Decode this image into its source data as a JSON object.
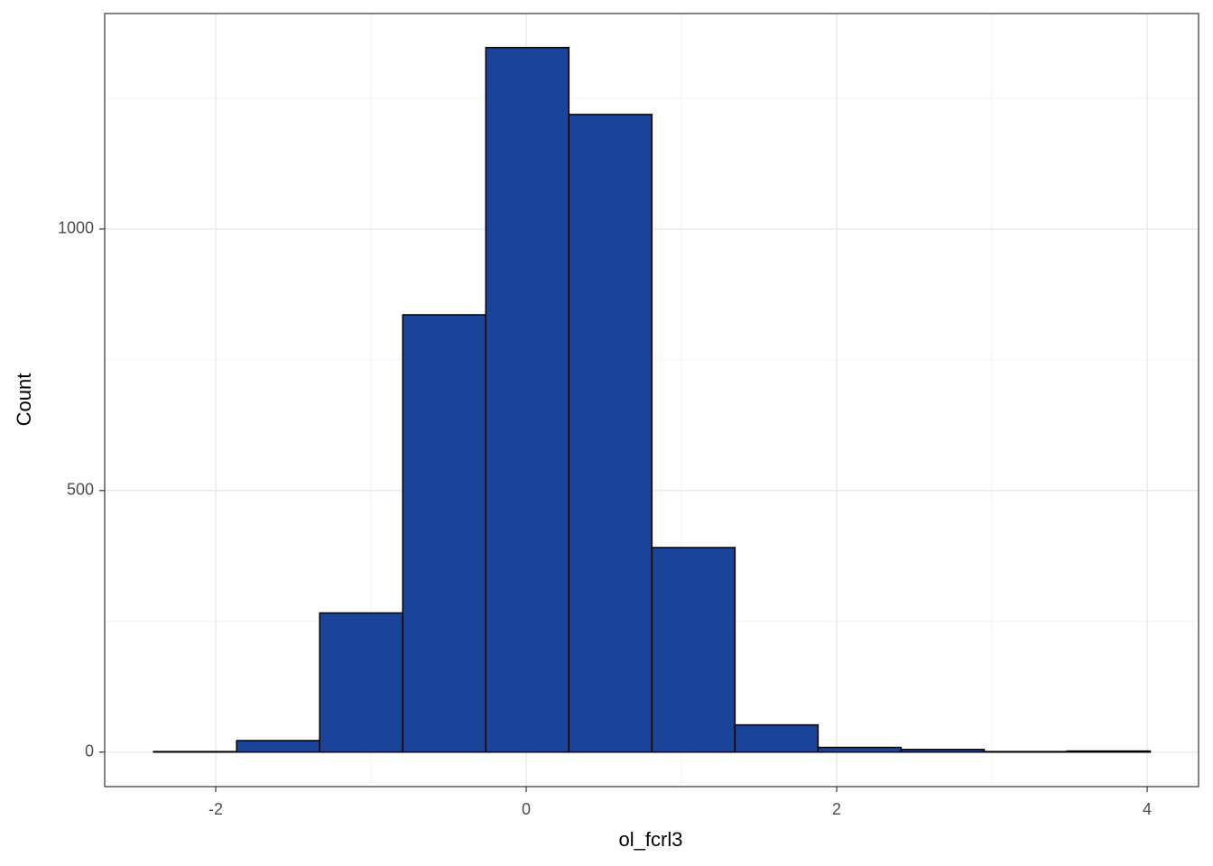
{
  "chart_data": {
    "type": "histogram",
    "x_label": "ol_fcrl3",
    "y_label": "Count",
    "bins": [
      -2.4,
      -1.865,
      -1.33,
      -0.795,
      -0.26,
      0.275,
      0.81,
      1.345,
      1.88,
      2.415,
      2.95,
      3.485,
      4.02
    ],
    "values": [
      1,
      22,
      266,
      836,
      1347,
      1219,
      391,
      52,
      9,
      5,
      1,
      2
    ],
    "color": "#1a4499",
    "edge_color": "#000000",
    "xlim": [
      -2.715,
      4.331
    ],
    "ylim": [
      -66,
      1412
    ],
    "xticks": [
      -2,
      0,
      2,
      4
    ],
    "yticks": [
      0,
      500,
      1000
    ],
    "xminor": [
      -1,
      1,
      3
    ],
    "yminor": [
      250,
      750,
      1250
    ],
    "grid": true
  }
}
